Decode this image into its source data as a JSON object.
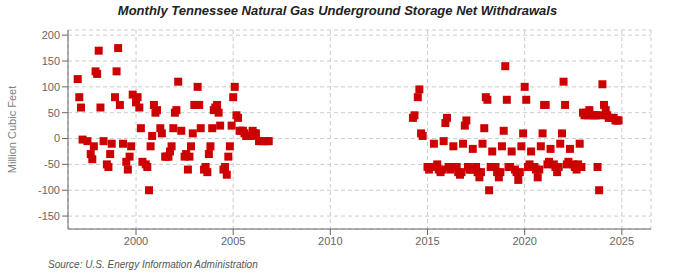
{
  "chart_data": {
    "type": "scatter",
    "title": "Monthly Tennessee Natural Gas Underground Storage Net Withdrawals",
    "ylabel": "Million Cubic Feet",
    "annotations": [
      "Source: U.S. Energy Information Administration"
    ],
    "xlim": [
      1996.5,
      2026.5
    ],
    "ylim": [
      -175,
      210
    ],
    "yticks": [
      -150,
      -100,
      -50,
      0,
      50,
      100,
      150,
      200
    ],
    "xticks": [
      2000,
      2005,
      2010,
      2015,
      2020,
      2025
    ],
    "grid": true,
    "color": "#cc0000",
    "marker": "square",
    "x": [
      1997.0,
      1997.08,
      1997.17,
      1997.25,
      1997.5,
      1997.67,
      1997.75,
      1997.83,
      1997.92,
      1998.0,
      1998.08,
      1998.17,
      1998.33,
      1998.5,
      1998.58,
      1998.67,
      1998.75,
      1998.92,
      1999.0,
      1999.08,
      1999.17,
      1999.33,
      1999.5,
      1999.58,
      1999.67,
      1999.75,
      1999.83,
      2000.0,
      2000.08,
      2000.17,
      2000.25,
      2000.33,
      2000.5,
      2000.58,
      2000.67,
      2000.75,
      2000.83,
      2000.92,
      2001.0,
      2001.08,
      2001.25,
      2001.33,
      2001.5,
      2001.58,
      2001.67,
      2001.75,
      2001.83,
      2001.92,
      2002.0,
      2002.08,
      2002.17,
      2002.33,
      2002.5,
      2002.58,
      2002.67,
      2002.75,
      2002.83,
      2002.92,
      2003.0,
      2003.08,
      2003.17,
      2003.25,
      2003.33,
      2003.5,
      2003.58,
      2003.67,
      2003.75,
      2003.83,
      2003.92,
      2004.0,
      2004.08,
      2004.17,
      2004.25,
      2004.33,
      2004.5,
      2004.58,
      2004.67,
      2004.75,
      2004.83,
      2004.92,
      2005.0,
      2005.08,
      2005.17,
      2005.25,
      2005.33,
      2005.42,
      2005.5,
      2005.58,
      2005.67,
      2005.75,
      2005.83,
      2005.92,
      2006.0,
      2006.08,
      2006.17,
      2006.33,
      2006.5,
      2006.58,
      2006.75,
      2006.83,
      2014.25,
      2014.33,
      2014.5,
      2014.58,
      2014.67,
      2014.75,
      2015.0,
      2015.08,
      2015.17,
      2015.25,
      2015.33,
      2015.5,
      2015.58,
      2015.67,
      2015.75,
      2015.83,
      2015.92,
      2016.0,
      2016.08,
      2016.17,
      2016.25,
      2016.33,
      2016.5,
      2016.58,
      2016.67,
      2016.75,
      2016.83,
      2016.92,
      2017.0,
      2017.08,
      2017.17,
      2017.25,
      2017.33,
      2017.5,
      2017.58,
      2017.67,
      2017.75,
      2017.83,
      2017.92,
      2018.0,
      2018.08,
      2018.17,
      2018.25,
      2018.33,
      2018.5,
      2018.58,
      2018.67,
      2018.75,
      2018.83,
      2018.92,
      2019.0,
      2019.08,
      2019.17,
      2019.25,
      2019.33,
      2019.5,
      2019.58,
      2019.67,
      2019.75,
      2019.83,
      2019.92,
      2020.0,
      2020.08,
      2020.17,
      2020.25,
      2020.33,
      2020.5,
      2020.58,
      2020.67,
      2020.75,
      2020.83,
      2020.92,
      2021.0,
      2021.08,
      2021.17,
      2021.25,
      2021.33,
      2021.5,
      2021.58,
      2021.67,
      2021.75,
      2021.83,
      2021.92,
      2022.0,
      2022.08,
      2022.17,
      2022.25,
      2022.33,
      2022.5,
      2022.58,
      2022.67,
      2022.75,
      2022.83,
      2022.92,
      2023.0,
      2023.08,
      2023.17,
      2023.25,
      2023.33,
      2023.5,
      2023.58,
      2023.67,
      2023.75,
      2023.83,
      2023.92,
      2024.0,
      2024.08,
      2024.17,
      2024.25,
      2024.33,
      2024.5,
      2024.58,
      2024.67,
      2024.75,
      2024.83
    ],
    "values": [
      115,
      80,
      60,
      -2,
      -5,
      -30,
      -40,
      -15,
      130,
      125,
      170,
      60,
      -5,
      -50,
      -55,
      -30,
      -10,
      80,
      130,
      175,
      65,
      -10,
      -45,
      -60,
      -35,
      -15,
      85,
      70,
      80,
      60,
      20,
      -45,
      -50,
      -55,
      -100,
      -15,
      5,
      65,
      50,
      55,
      20,
      10,
      -35,
      -35,
      -35,
      -25,
      -15,
      20,
      50,
      55,
      110,
      15,
      -35,
      -30,
      -60,
      -35,
      -15,
      10,
      65,
      65,
      100,
      65,
      20,
      -60,
      -55,
      -65,
      -30,
      -15,
      20,
      55,
      60,
      65,
      50,
      25,
      -60,
      -55,
      -70,
      -35,
      -15,
      25,
      80,
      100,
      45,
      40,
      15,
      15,
      15,
      10,
      5,
      5,
      5,
      5,
      15,
      10,
      10,
      -5,
      -5,
      -5,
      -5,
      -5,
      40,
      45,
      80,
      95,
      10,
      5,
      -55,
      -60,
      -55,
      -55,
      -10,
      -50,
      -60,
      -65,
      -60,
      -5,
      30,
      40,
      -55,
      -60,
      -55,
      -15,
      -55,
      -65,
      -70,
      -65,
      -10,
      25,
      35,
      -55,
      -60,
      -60,
      -20,
      -55,
      -65,
      -75,
      -65,
      -10,
      20,
      80,
      75,
      -100,
      -55,
      -25,
      -55,
      -65,
      -75,
      -65,
      -15,
      15,
      140,
      75,
      -55,
      -55,
      -25,
      -60,
      -65,
      -80,
      -65,
      -15,
      10,
      100,
      75,
      -55,
      -50,
      -25,
      -55,
      -60,
      -75,
      -60,
      -15,
      10,
      65,
      65,
      -50,
      -45,
      -20,
      -50,
      -55,
      -65,
      -55,
      -10,
      10,
      110,
      65,
      -50,
      -45,
      -20,
      -50,
      -55,
      -60,
      -50,
      -10,
      -55,
      50,
      45,
      50,
      45,
      55,
      45,
      45,
      45,
      -55,
      -100,
      45,
      105,
      65,
      55,
      45,
      40,
      40,
      40,
      35,
      35,
      35
    ]
  }
}
